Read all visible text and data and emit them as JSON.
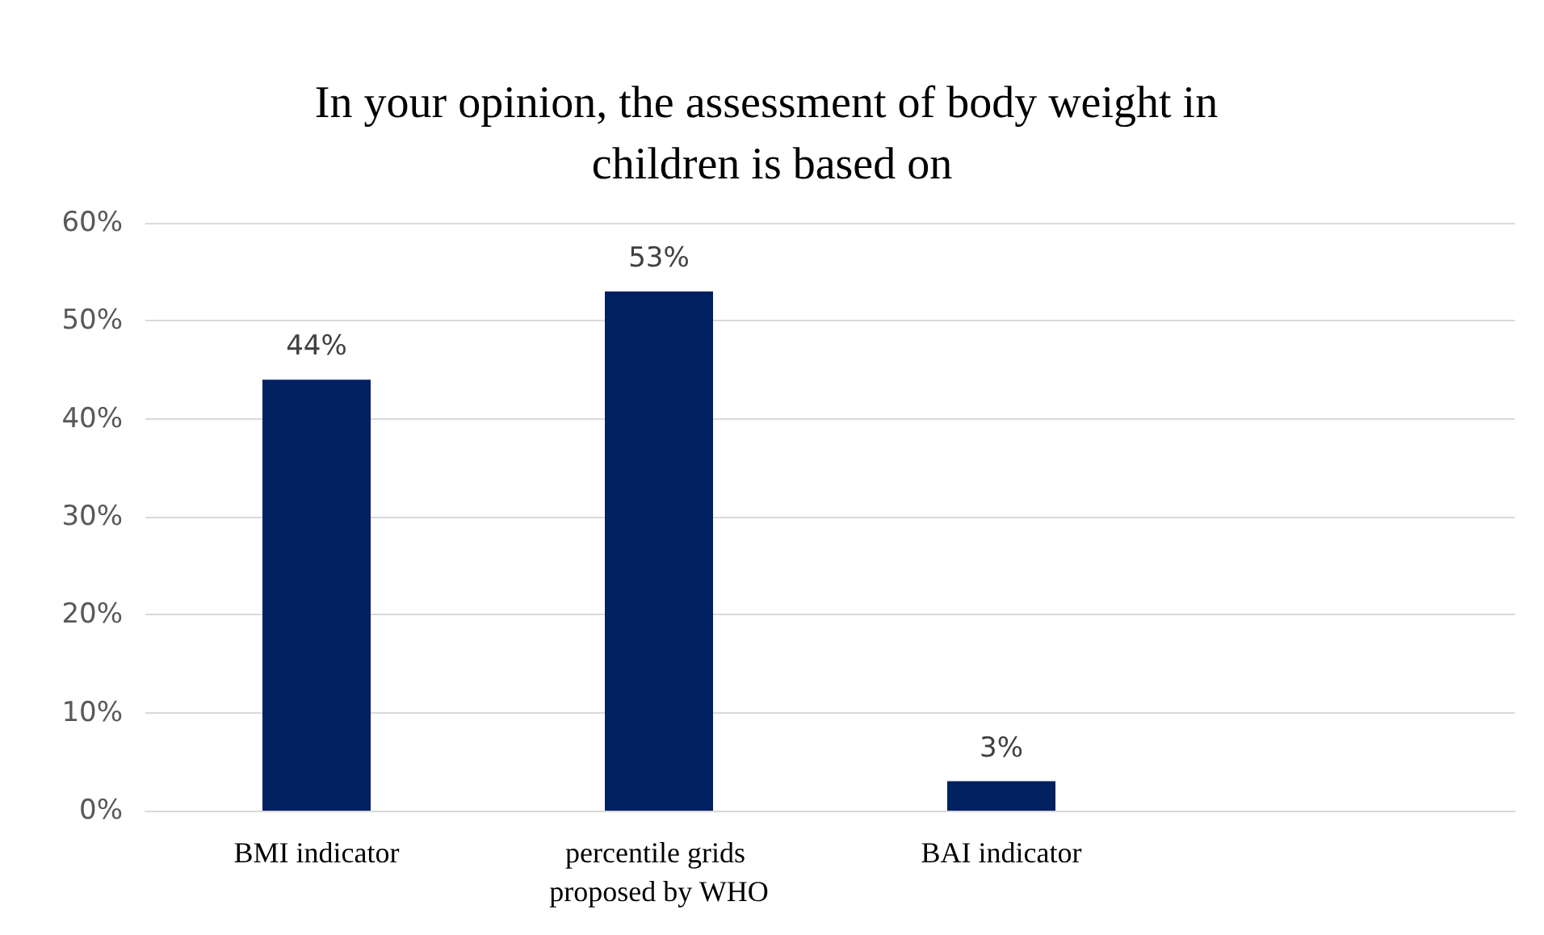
{
  "chart_data": {
    "type": "bar",
    "title": "In your opinion, the assessment of body weight in children is based on",
    "categories": [
      "BMI indicator",
      "percentile grids proposed by WHO",
      "BAI indicator",
      null
    ],
    "values": [
      0.44,
      0.53,
      0.03,
      null
    ],
    "value_labels": [
      "44%",
      "53%",
      "3%",
      null
    ],
    "color": "#002060",
    "ylim": [
      0,
      0.6
    ],
    "yticks": [
      {
        "value": 0,
        "label": "0%"
      },
      {
        "value": 0.1,
        "label": "10%"
      },
      {
        "value": 0.2,
        "label": "20%"
      },
      {
        "value": 0.3,
        "label": "30%"
      },
      {
        "value": 0.4,
        "label": "40%"
      },
      {
        "value": 0.5,
        "label": "50%"
      },
      {
        "value": 0.6,
        "label": "60%"
      }
    ],
    "grid": "y"
  }
}
